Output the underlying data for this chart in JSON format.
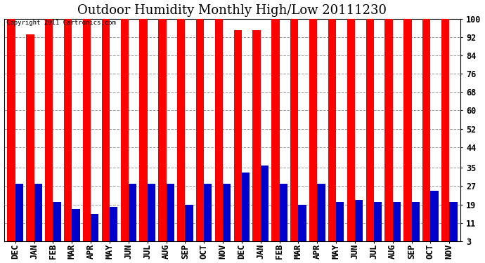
{
  "title": "Outdoor Humidity Monthly High/Low 20111230",
  "copyright": "Copyright 2011 Cartronics.com",
  "months": [
    "DEC",
    "JAN",
    "FEB",
    "MAR",
    "APR",
    "MAY",
    "JUN",
    "JUL",
    "AUG",
    "SEP",
    "OCT",
    "NOV",
    "DEC",
    "JAN",
    "FEB",
    "MAR",
    "APR",
    "MAY",
    "JUN",
    "JUL",
    "AUG",
    "SEP",
    "OCT",
    "NOV"
  ],
  "highs": [
    100,
    93,
    100,
    100,
    100,
    100,
    100,
    100,
    100,
    100,
    100,
    100,
    95,
    95,
    100,
    100,
    100,
    100,
    100,
    100,
    100,
    100,
    100,
    100
  ],
  "lows": [
    28,
    28,
    20,
    17,
    15,
    18,
    28,
    28,
    28,
    19,
    28,
    28,
    33,
    36,
    28,
    19,
    28,
    20,
    21,
    20,
    20,
    20,
    25,
    20
  ],
  "high_color": "#ff0000",
  "low_color": "#0000cc",
  "bg_color": "#ffffff",
  "yticks": [
    3,
    11,
    19,
    27,
    35,
    44,
    52,
    60,
    68,
    76,
    84,
    92,
    100
  ],
  "ylim_min": 3,
  "ylim_max": 100,
  "bar_width": 0.42,
  "grid_color": "#999999",
  "title_fontsize": 13,
  "tick_fontsize": 8.5,
  "figwidth": 6.9,
  "figheight": 3.75,
  "dpi": 100
}
